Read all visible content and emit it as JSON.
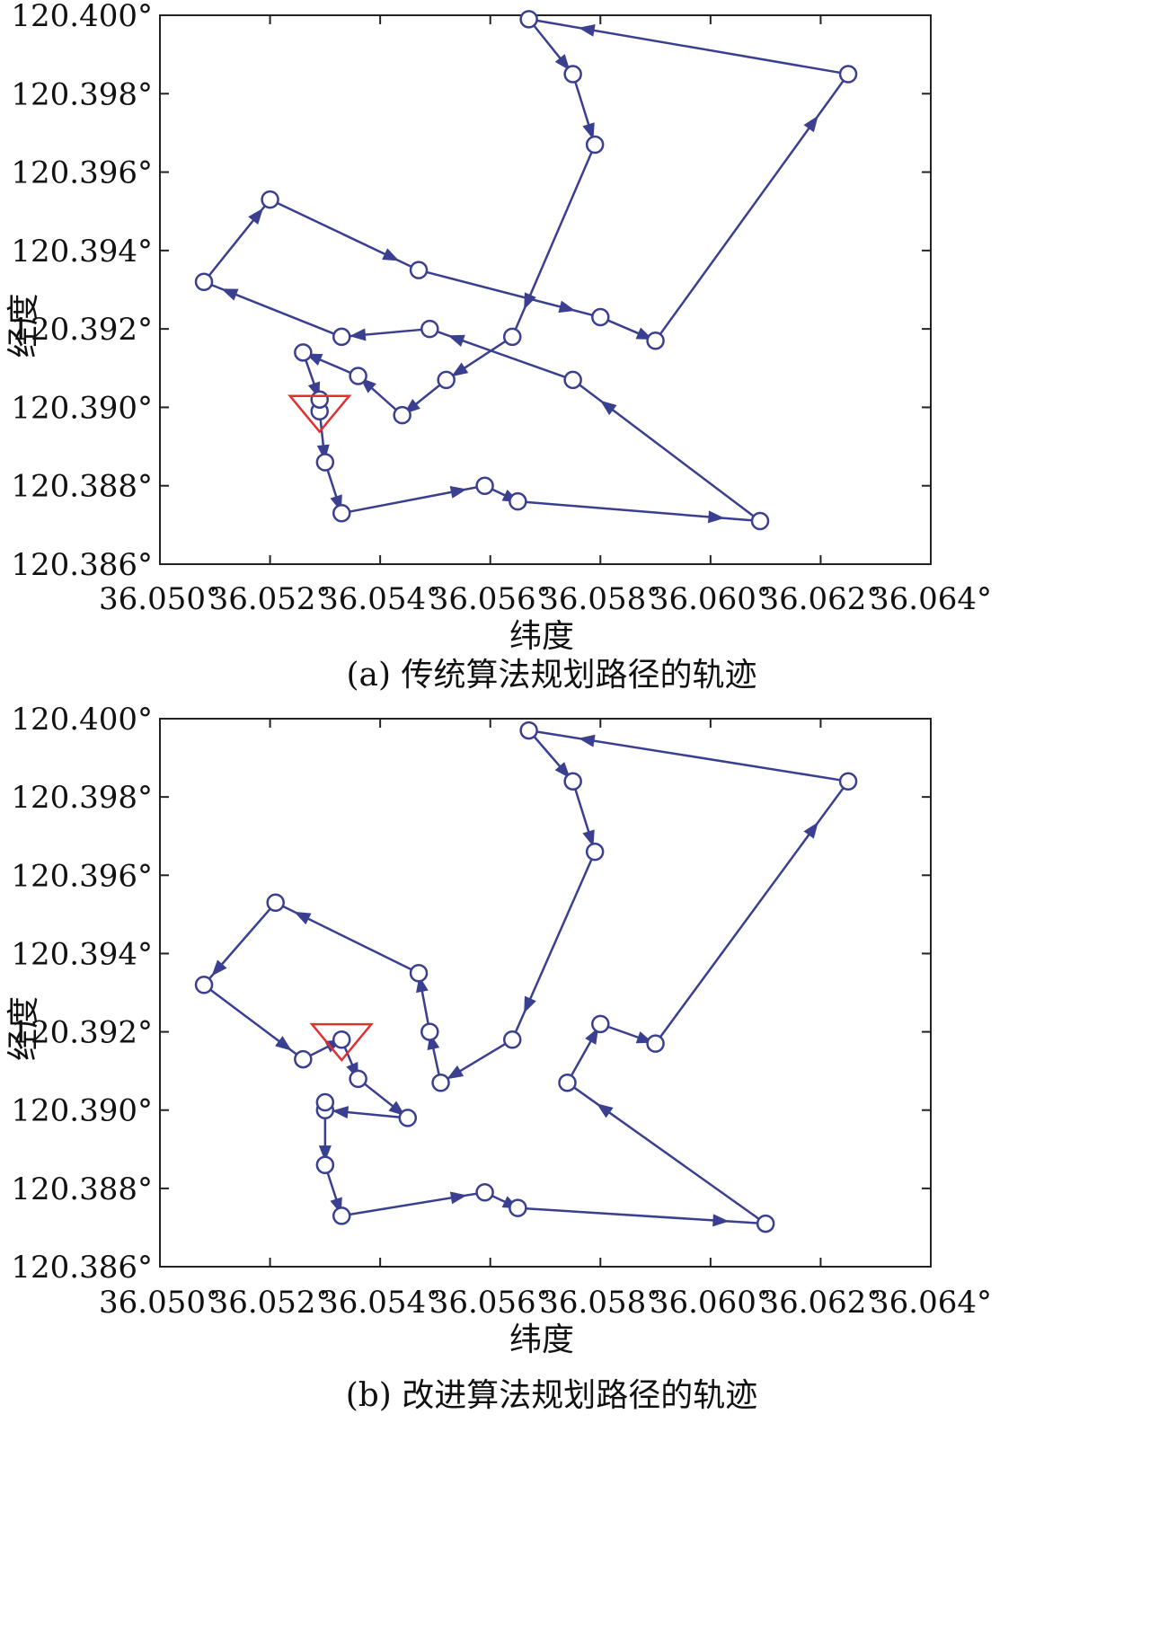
{
  "chart_data": [
    {
      "type": "line",
      "caption": "(a) 传统算法规划路径的轨迹",
      "xlabel": "纬度",
      "ylabel": "经度",
      "xlim": [
        36.05,
        36.064
      ],
      "ylim": [
        120.386,
        120.4
      ],
      "x_ticks": [
        "36.050°",
        "36.052°",
        "36.054°",
        "36.056°",
        "36.058°",
        "36.060°",
        "36.062°",
        "36.064°"
      ],
      "y_ticks": [
        "120.386°",
        "120.388°",
        "120.390°",
        "120.392°",
        "120.394°",
        "120.396°",
        "120.398°",
        "120.400°"
      ],
      "grid": false,
      "start": {
        "x": 36.0529,
        "y": 120.3899
      },
      "path": [
        {
          "x": 36.0529,
          "y": 120.3899
        },
        {
          "x": 36.053,
          "y": 120.3886
        },
        {
          "x": 36.0533,
          "y": 120.3873
        },
        {
          "x": 36.0559,
          "y": 120.388
        },
        {
          "x": 36.0565,
          "y": 120.3876
        },
        {
          "x": 36.0609,
          "y": 120.3871
        },
        {
          "x": 36.0575,
          "y": 120.3907
        },
        {
          "x": 36.0549,
          "y": 120.392
        },
        {
          "x": 36.0533,
          "y": 120.3918
        },
        {
          "x": 36.0508,
          "y": 120.3932
        },
        {
          "x": 36.052,
          "y": 120.3953
        },
        {
          "x": 36.0547,
          "y": 120.3935
        },
        {
          "x": 36.058,
          "y": 120.3923
        },
        {
          "x": 36.059,
          "y": 120.3917
        },
        {
          "x": 36.0625,
          "y": 120.3985
        },
        {
          "x": 36.0567,
          "y": 120.3999
        },
        {
          "x": 36.0575,
          "y": 120.3985
        },
        {
          "x": 36.0579,
          "y": 120.3967
        },
        {
          "x": 36.0564,
          "y": 120.3918
        },
        {
          "x": 36.0552,
          "y": 120.3907
        },
        {
          "x": 36.0544,
          "y": 120.3898
        },
        {
          "x": 36.0536,
          "y": 120.3908
        },
        {
          "x": 36.0526,
          "y": 120.3914
        },
        {
          "x": 36.0529,
          "y": 120.3902
        }
      ]
    },
    {
      "type": "line",
      "caption": "(b) 改进算法规划路径的轨迹",
      "xlabel": "纬度",
      "ylabel": "经度",
      "xlim": [
        36.05,
        36.064
      ],
      "ylim": [
        120.386,
        120.4
      ],
      "x_ticks": [
        "36.050°",
        "36.052°",
        "36.054°",
        "36.056°",
        "36.058°",
        "36.060°",
        "36.062°",
        "36.064°"
      ],
      "y_ticks": [
        "120.386°",
        "120.388°",
        "120.390°",
        "120.392°",
        "120.394°",
        "120.396°",
        "120.398°",
        "120.400°"
      ],
      "grid": false,
      "start": {
        "x": 36.0533,
        "y": 120.3918
      },
      "path": [
        {
          "x": 36.0533,
          "y": 120.3918
        },
        {
          "x": 36.0536,
          "y": 120.3908
        },
        {
          "x": 36.0545,
          "y": 120.3898
        },
        {
          "x": 36.053,
          "y": 120.39
        },
        {
          "x": 36.053,
          "y": 120.3902
        },
        {
          "x": 36.053,
          "y": 120.3886
        },
        {
          "x": 36.0533,
          "y": 120.3873
        },
        {
          "x": 36.0559,
          "y": 120.3879
        },
        {
          "x": 36.0565,
          "y": 120.3875
        },
        {
          "x": 36.061,
          "y": 120.3871
        },
        {
          "x": 36.0574,
          "y": 120.3907
        },
        {
          "x": 36.058,
          "y": 120.3922
        },
        {
          "x": 36.059,
          "y": 120.3917
        },
        {
          "x": 36.0625,
          "y": 120.3984
        },
        {
          "x": 36.0567,
          "y": 120.3997
        },
        {
          "x": 36.0575,
          "y": 120.3984
        },
        {
          "x": 36.0579,
          "y": 120.3966
        },
        {
          "x": 36.0564,
          "y": 120.3918
        },
        {
          "x": 36.0551,
          "y": 120.3907
        },
        {
          "x": 36.0549,
          "y": 120.392
        },
        {
          "x": 36.0547,
          "y": 120.3935
        },
        {
          "x": 36.0521,
          "y": 120.3953
        },
        {
          "x": 36.0508,
          "y": 120.3932
        },
        {
          "x": 36.0526,
          "y": 120.3913
        },
        {
          "x": 36.0533,
          "y": 120.3918
        }
      ]
    }
  ]
}
